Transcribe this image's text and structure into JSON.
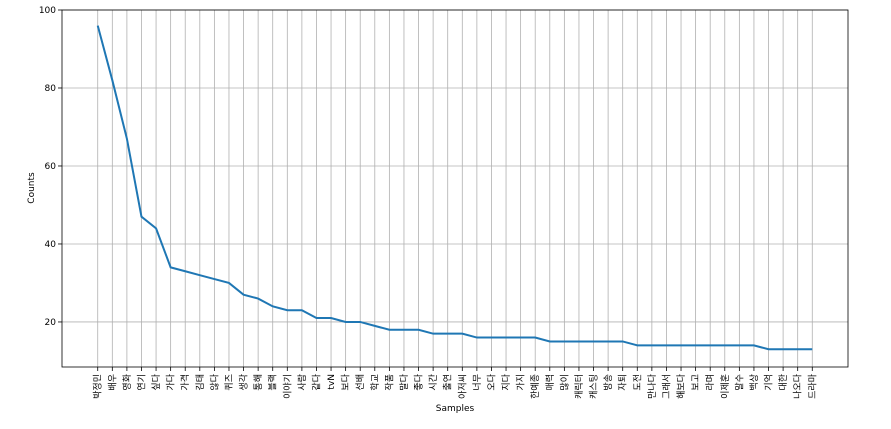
{
  "chart_data": {
    "type": "line",
    "xlabel": "Samples",
    "ylabel": "Counts",
    "categories": [
      "박정민",
      "배우",
      "영화",
      "연기",
      "싶다",
      "가다",
      "가격",
      "김태",
      "않다",
      "퀴즈",
      "생각",
      "통해",
      "블랙",
      "이야기",
      "사람",
      "같다",
      "tvN",
      "보다",
      "선배",
      "학교",
      "작품",
      "말다",
      "좋다",
      "시간",
      "출연",
      "아저씨",
      "너무",
      "오다",
      "지다",
      "가지",
      "한예종",
      "매력",
      "많이",
      "캐릭터",
      "캐스팅",
      "방송",
      "자퇴",
      "도전",
      "만나다",
      "그래서",
      "해보다",
      "보고",
      "라며",
      "이제훈",
      "말수",
      "백상",
      "기억",
      "대한",
      "나오다",
      "드라마"
    ],
    "series": [
      {
        "color": "#1f77b4",
        "values": [
          96,
          82,
          67,
          47,
          44,
          34,
          33,
          32,
          31,
          30,
          27,
          26,
          24,
          23,
          23,
          21,
          21,
          20,
          20,
          19,
          18,
          18,
          18,
          17,
          17,
          17,
          16,
          16,
          16,
          16,
          16,
          15,
          15,
          15,
          15,
          15,
          15,
          14,
          14,
          14,
          14,
          14,
          14,
          14,
          14,
          14,
          13,
          13,
          13,
          13
        ]
      }
    ],
    "ylim": [
      8.45,
      100
    ],
    "yticks": [
      20,
      40,
      60,
      80,
      100
    ],
    "grid": true
  }
}
